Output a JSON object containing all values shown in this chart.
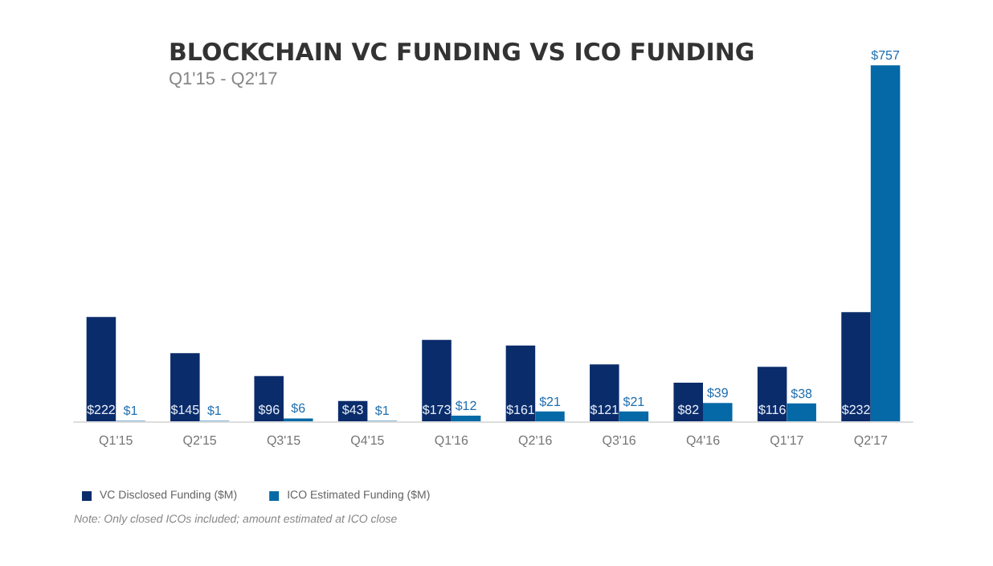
{
  "chart_data": {
    "type": "bar",
    "title": "BLOCKCHAIN VC FUNDING VS ICO FUNDING",
    "subtitle": "Q1'15 - Q2'17",
    "categories": [
      "Q1'15",
      "Q2'15",
      "Q3'15",
      "Q4'15",
      "Q1'16",
      "Q2'16",
      "Q3'16",
      "Q4'16",
      "Q1'17",
      "Q2'17"
    ],
    "series": [
      {
        "name": "VC Disclosed Funding ($M)",
        "color": "#0b2c6b",
        "values": [
          222,
          145,
          96,
          43,
          173,
          161,
          121,
          82,
          116,
          232
        ],
        "value_labels": [
          "$222",
          "$145",
          "$96",
          "$43",
          "$173",
          "$161",
          "$121",
          "$82",
          "$116",
          "$232"
        ]
      },
      {
        "name": "ICO Estimated Funding ($M)",
        "color": "#0469a6",
        "values": [
          1,
          1,
          6,
          1,
          12,
          21,
          21,
          39,
          38,
          757
        ],
        "value_labels": [
          "$1",
          "$1",
          "$6",
          "$1",
          "$12",
          "$21",
          "$21",
          "$39",
          "$38",
          "$757"
        ]
      }
    ],
    "legend": "bottom left",
    "annotations": [
      "Note: Only closed ICOs included; amount estimated at ICO close"
    ]
  }
}
